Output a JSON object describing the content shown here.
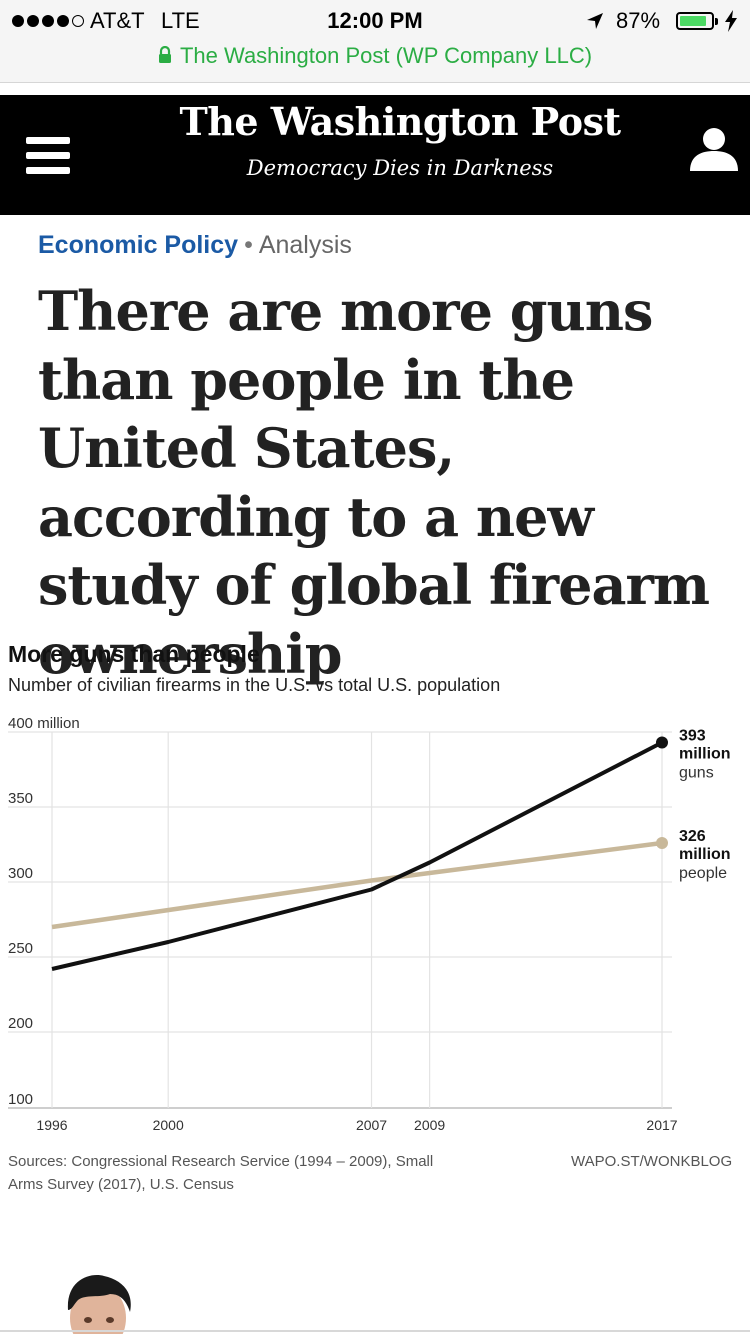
{
  "status_bar": {
    "carrier": "AT&T",
    "network": "LTE",
    "time": "12:00 PM",
    "battery_percent": "87%",
    "battery_level": 0.87,
    "location_icon": "location-arrow-icon",
    "charging_icon": "bolt-icon"
  },
  "browser": {
    "site_identity": "The Washington Post (WP Company LLC)",
    "secure_icon": "lock-icon",
    "accent_color": "#2bad44"
  },
  "header": {
    "masthead": "The Washington Post",
    "tagline": "Democracy Dies in Darkness",
    "menu_icon": "hamburger-menu-icon",
    "account_icon": "user-icon"
  },
  "article": {
    "section": "Economic Policy",
    "separator": "•",
    "type": "Analysis",
    "section_color": "#1b5aa5",
    "headline": "There are more guns than people in the United States, according to a new study of global firearm ownership"
  },
  "chart": {
    "title": "More guns than people",
    "subtitle": "Number of civilian firearms in the U.S. vs total U.S. population",
    "source": "Sources: Congressional Research Service (1994 – 2009), Small Arms Survey (2017), U.S. Census",
    "credit": "WAPO.ST/WONKBLOG"
  },
  "chart_data": {
    "type": "line",
    "title": "More guns than people",
    "subtitle": "Number of civilian firearms in the U.S. vs total U.S. population",
    "x_ticks": [
      "1996",
      "2000",
      "2007",
      "2009",
      "2017"
    ],
    "y_ticks": [
      {
        "value": 400,
        "label": "400 million"
      },
      {
        "value": 350,
        "label": "350"
      },
      {
        "value": 300,
        "label": "300"
      },
      {
        "value": 250,
        "label": "250"
      },
      {
        "value": 200,
        "label": "200"
      },
      {
        "value": 100,
        "label": "100"
      }
    ],
    "xlim": [
      1996,
      2017
    ],
    "grid": true,
    "series": [
      {
        "key": "people",
        "color": "#c8b89a",
        "points": [
          [
            1996,
            270
          ],
          [
            2007,
            301
          ],
          [
            2009,
            306
          ],
          [
            2017,
            326
          ]
        ],
        "end_label": {
          "value": "326",
          "unit": "million",
          "name": "people"
        }
      },
      {
        "key": "guns",
        "color": "#111111",
        "points": [
          [
            1996,
            242
          ],
          [
            2000,
            260
          ],
          [
            2007,
            295
          ],
          [
            2009,
            313
          ],
          [
            2017,
            393
          ]
        ],
        "end_label": {
          "value": "393",
          "unit": "million",
          "name": "guns"
        }
      }
    ]
  }
}
